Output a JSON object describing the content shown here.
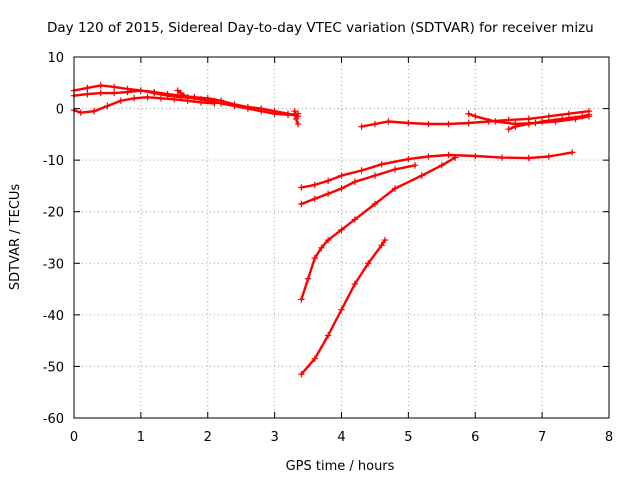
{
  "chart_data": {
    "type": "scatter",
    "title": "Day 120 of 2015, Sidereal Day-to-day VTEC variation (SDTVAR) for receiver mizu",
    "xlabel": "GPS time / hours",
    "ylabel": "SDTVAR / TECUs",
    "xlim": [
      0,
      8
    ],
    "ylim": [
      -60,
      10
    ],
    "xticks": [
      0,
      1,
      2,
      3,
      4,
      5,
      6,
      7,
      8
    ],
    "yticks": [
      -60,
      -50,
      -40,
      -30,
      -20,
      -10,
      0,
      10
    ],
    "grid": true,
    "marker": "plus",
    "color": "#ff0000",
    "series": [
      {
        "x": [
          0,
          0.2,
          0.4,
          0.6,
          0.8,
          1.0,
          1.2,
          1.4,
          1.6,
          1.8,
          2.0,
          2.2,
          2.4,
          2.6,
          2.8,
          3.0,
          3.2,
          3.35
        ],
        "y": [
          3.5,
          4.0,
          4.5,
          4.2,
          3.8,
          3.5,
          3.2,
          2.8,
          2.5,
          2.2,
          2.0,
          1.5,
          0.8,
          0.3,
          0,
          -0.5,
          -1.0,
          -1.5
        ]
      },
      {
        "x": [
          0,
          0.2,
          0.4,
          0.6,
          0.8,
          1.0,
          1.2,
          1.4,
          1.6,
          1.8,
          2.0,
          2.2,
          2.4,
          2.6,
          2.8,
          3.0,
          3.2,
          3.35
        ],
        "y": [
          2.5,
          2.8,
          3.0,
          3.0,
          3.2,
          3.5,
          3.0,
          2.5,
          2.2,
          2.0,
          1.5,
          1.0,
          0.5,
          0,
          -0.5,
          -1.0,
          -1.2,
          -1.0
        ]
      },
      {
        "x": [
          0,
          0.1,
          0.3,
          0.5,
          0.7,
          0.9,
          1.1,
          1.3,
          1.5,
          1.7,
          1.9,
          2.1
        ],
        "y": [
          -0.3,
          -0.8,
          -0.5,
          0.5,
          1.5,
          2.0,
          2.2,
          2.0,
          1.8,
          1.5,
          1.2,
          1.0
        ]
      },
      {
        "x": [
          1.55,
          1.6,
          1.7,
          1.9,
          2.1
        ],
        "y": [
          3.5,
          3.0,
          2.2,
          1.8,
          1.5
        ]
      },
      {
        "x": [
          3.3,
          3.32,
          3.35
        ],
        "y": [
          -0.5,
          -2.0,
          -3.0
        ]
      },
      {
        "x": [
          4.3,
          4.5,
          4.7,
          5.0,
          5.3,
          5.6,
          5.9,
          6.2,
          6.5,
          6.8,
          7.1,
          7.4,
          7.7
        ],
        "y": [
          -3.5,
          -3.0,
          -2.5,
          -2.8,
          -3.0,
          -3.0,
          -2.8,
          -2.5,
          -2.2,
          -2.0,
          -1.5,
          -1.0,
          -0.5
        ]
      },
      {
        "x": [
          5.9,
          6.0,
          6.3,
          6.6,
          6.9,
          7.2,
          7.5,
          7.7
        ],
        "y": [
          -1.0,
          -1.5,
          -2.5,
          -3.0,
          -2.8,
          -2.5,
          -2.0,
          -1.5
        ]
      },
      {
        "x": [
          6.5,
          6.6,
          6.8,
          7.0,
          7.3,
          7.6,
          7.7
        ],
        "y": [
          -4.0,
          -3.5,
          -3.0,
          -2.5,
          -2.0,
          -1.5,
          -1.2
        ]
      },
      {
        "x": [
          3.4,
          3.6,
          3.8,
          4.0,
          4.3,
          4.6,
          5.0,
          5.3,
          5.6,
          6.0,
          6.4,
          6.8,
          7.1,
          7.45
        ],
        "y": [
          -15.3,
          -14.8,
          -14.0,
          -13.0,
          -12.0,
          -10.8,
          -9.8,
          -9.3,
          -9.0,
          -9.2,
          -9.5,
          -9.6,
          -9.3,
          -8.5
        ]
      },
      {
        "x": [
          3.4,
          3.6,
          3.8,
          4.0,
          4.2,
          4.5,
          4.8,
          5.1
        ],
        "y": [
          -18.5,
          -17.5,
          -16.5,
          -15.5,
          -14.2,
          -13.0,
          -11.8,
          -11.0
        ]
      },
      {
        "x": [
          3.4,
          3.5,
          3.6,
          3.7,
          3.8,
          4.0,
          4.2,
          4.5,
          4.8,
          5.2,
          5.5,
          5.7
        ],
        "y": [
          -37.0,
          -33.0,
          -29.0,
          -27.0,
          -25.5,
          -23.5,
          -21.5,
          -18.5,
          -15.5,
          -13.0,
          -11.0,
          -9.5
        ]
      },
      {
        "x": [
          3.4,
          3.6,
          3.8,
          4.0,
          4.2,
          4.4,
          4.6,
          4.65
        ],
        "y": [
          -51.5,
          -48.5,
          -44.0,
          -39.0,
          -34.0,
          -30.0,
          -26.5,
          -25.5
        ]
      }
    ]
  }
}
